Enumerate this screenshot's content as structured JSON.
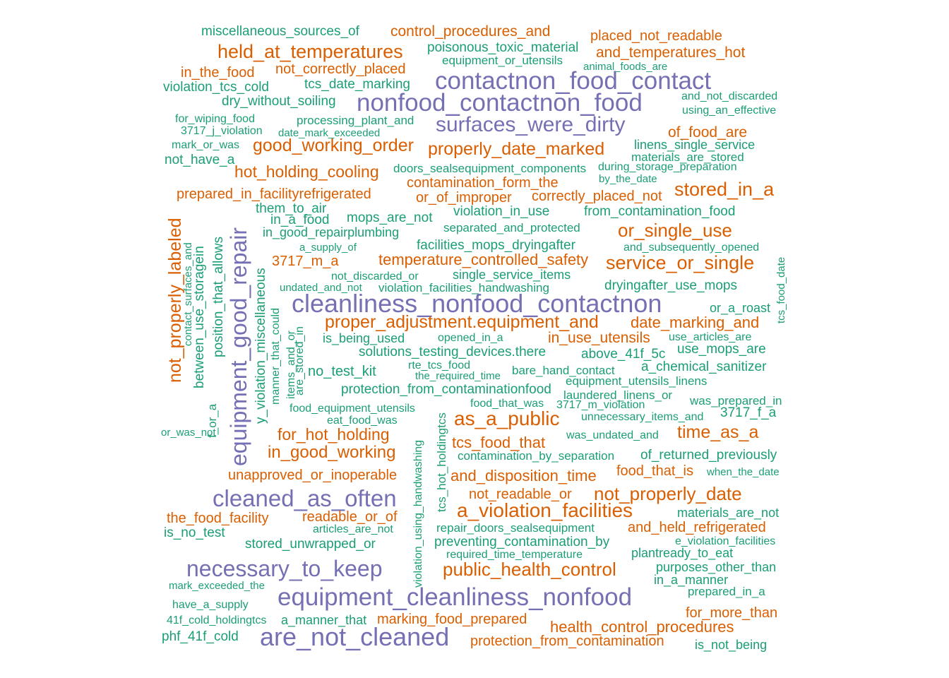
{
  "palette": {
    "purple": "#7570b3",
    "orange": "#d95f02",
    "teal": "#1b9e77"
  },
  "words": [
    {
      "text": "miscellaneous_sources_of",
      "color": "teal"
    },
    {
      "text": "control_procedures_and",
      "color": "orange"
    },
    {
      "text": "placed_not_readable",
      "color": "orange"
    },
    {
      "text": "held_at_temperatures",
      "color": "orange"
    },
    {
      "text": "poisonous_toxic_material",
      "color": "teal"
    },
    {
      "text": "and_temperatures_hot",
      "color": "orange"
    },
    {
      "text": "equipment_or_utensils",
      "color": "teal"
    },
    {
      "text": "in_the_food",
      "color": "orange"
    },
    {
      "text": "not_correctly_placed",
      "color": "orange"
    },
    {
      "text": "animal_foods_are",
      "color": "teal"
    },
    {
      "text": "contactnon_food_contact",
      "color": "purple"
    },
    {
      "text": "violation_tcs_cold",
      "color": "teal"
    },
    {
      "text": "tcs_date_marking",
      "color": "teal"
    },
    {
      "text": "dry_without_soiling",
      "color": "teal"
    },
    {
      "text": "nonfood_contactnon_food",
      "color": "purple"
    },
    {
      "text": "and_not_discarded",
      "color": "teal"
    },
    {
      "text": "using_an_effective",
      "color": "teal"
    },
    {
      "text": "for_wiping_food",
      "color": "teal"
    },
    {
      "text": "processing_plant_and",
      "color": "teal"
    },
    {
      "text": "surfaces_were_dirty",
      "color": "purple"
    },
    {
      "text": "3717_j_violation",
      "color": "teal"
    },
    {
      "text": "date_mark_exceeded",
      "color": "teal"
    },
    {
      "text": "of_food_are",
      "color": "orange"
    },
    {
      "text": "mark_or_was",
      "color": "teal"
    },
    {
      "text": "good_working_order",
      "color": "orange"
    },
    {
      "text": "properly_date_marked",
      "color": "orange"
    },
    {
      "text": "linens_single_service",
      "color": "teal"
    },
    {
      "text": "not_have_a",
      "color": "teal"
    },
    {
      "text": "materials_are_stored",
      "color": "teal"
    },
    {
      "text": "hot_holding_cooling",
      "color": "orange"
    },
    {
      "text": "doors_sealsequipment_components",
      "color": "teal"
    },
    {
      "text": "during_storage_preparation",
      "color": "teal"
    },
    {
      "text": "by_the_date",
      "color": "teal"
    },
    {
      "text": "contamination_form_the",
      "color": "orange"
    },
    {
      "text": "stored_in_a",
      "color": "orange"
    },
    {
      "text": "prepared_in_facilityrefrigerated",
      "color": "orange"
    },
    {
      "text": "or_of_improper",
      "color": "orange"
    },
    {
      "text": "correctly_placed_not",
      "color": "orange"
    },
    {
      "text": "them_to_air",
      "color": "teal"
    },
    {
      "text": "violation_in_use",
      "color": "teal"
    },
    {
      "text": "from_contamination_food",
      "color": "teal"
    },
    {
      "text": "in_a_food",
      "color": "teal"
    },
    {
      "text": "mops_are_not",
      "color": "teal"
    },
    {
      "text": "separated_and_protected",
      "color": "teal"
    },
    {
      "text": "or_single_use",
      "color": "orange"
    },
    {
      "text": "in_good_repairplumbing",
      "color": "teal"
    },
    {
      "text": "a_supply_of",
      "color": "teal"
    },
    {
      "text": "facilities_mops_dryingafter",
      "color": "teal"
    },
    {
      "text": "and_subsequently_opened",
      "color": "teal"
    },
    {
      "text": "3717_m_a",
      "color": "orange"
    },
    {
      "text": "temperature_controlled_safety",
      "color": "orange"
    },
    {
      "text": "service_or_single",
      "color": "orange"
    },
    {
      "text": "not_discarded_or",
      "color": "teal"
    },
    {
      "text": "single_service_items",
      "color": "teal"
    },
    {
      "text": "undated_and_not",
      "color": "teal"
    },
    {
      "text": "violation_facilities_handwashing",
      "color": "teal"
    },
    {
      "text": "dryingafter_use_mops",
      "color": "teal"
    },
    {
      "text": "cleanliness_nonfood_contactnon",
      "color": "purple"
    },
    {
      "text": "or_a_roast",
      "color": "teal"
    },
    {
      "text": "proper_adjustment.equipment_and",
      "color": "orange"
    },
    {
      "text": "date_marking_and",
      "color": "orange"
    },
    {
      "text": "is_being_used",
      "color": "teal"
    },
    {
      "text": "opened_in_a",
      "color": "teal"
    },
    {
      "text": "in_use_utensils",
      "color": "orange"
    },
    {
      "text": "use_articles_are",
      "color": "teal"
    },
    {
      "text": "solutions_testing_devices.there",
      "color": "teal"
    },
    {
      "text": "above_41f_5c",
      "color": "teal"
    },
    {
      "text": "use_mops_are",
      "color": "teal"
    },
    {
      "text": "rte_tcs_food",
      "color": "teal"
    },
    {
      "text": "a_chemical_sanitizer",
      "color": "teal"
    },
    {
      "text": "no_test_kit",
      "color": "teal"
    },
    {
      "text": "bare_hand_contact",
      "color": "teal"
    },
    {
      "text": "the_required_time",
      "color": "teal"
    },
    {
      "text": "equipment_utensils_linens",
      "color": "teal"
    },
    {
      "text": "protection_from_contaminationfood",
      "color": "teal"
    },
    {
      "text": "laundered_linens_or",
      "color": "teal"
    },
    {
      "text": "food_that_was",
      "color": "teal"
    },
    {
      "text": "3717_m_violation",
      "color": "teal"
    },
    {
      "text": "was_prepared_in",
      "color": "teal"
    },
    {
      "text": "food_equipment_utensils",
      "color": "teal"
    },
    {
      "text": "3717_f_a",
      "color": "teal"
    },
    {
      "text": "as_a_public",
      "color": "orange"
    },
    {
      "text": "unnecessary_items_and",
      "color": "teal"
    },
    {
      "text": "eat_food_was",
      "color": "teal"
    },
    {
      "text": "or_was_not",
      "color": "teal"
    },
    {
      "text": "for_hot_holding",
      "color": "orange"
    },
    {
      "text": "time_as_a",
      "color": "orange"
    },
    {
      "text": "was_undated_and",
      "color": "teal"
    },
    {
      "text": "in_good_working",
      "color": "orange"
    },
    {
      "text": "tcs_food_that",
      "color": "orange"
    },
    {
      "text": "contamination_by_separation",
      "color": "teal"
    },
    {
      "text": "of_returned_previously",
      "color": "teal"
    },
    {
      "text": "unapproved_or_inoperable",
      "color": "orange"
    },
    {
      "text": "and_disposition_time",
      "color": "orange"
    },
    {
      "text": "food_that_is",
      "color": "orange"
    },
    {
      "text": "when_the_date",
      "color": "teal"
    },
    {
      "text": "cleaned_as_often",
      "color": "purple"
    },
    {
      "text": "not_readable_or",
      "color": "orange"
    },
    {
      "text": "not_properly_date",
      "color": "orange"
    },
    {
      "text": "a_violation_facilities",
      "color": "orange"
    },
    {
      "text": "the_food_facility",
      "color": "orange"
    },
    {
      "text": "readable_or_of",
      "color": "orange"
    },
    {
      "text": "materials_are_not",
      "color": "teal"
    },
    {
      "text": "is_no_test",
      "color": "teal"
    },
    {
      "text": "articles_are_not",
      "color": "teal"
    },
    {
      "text": "repair_doors_sealsequipment",
      "color": "teal"
    },
    {
      "text": "and_held_refrigerated",
      "color": "orange"
    },
    {
      "text": "stored_unwrapped_or",
      "color": "teal"
    },
    {
      "text": "preventing_contamination_by",
      "color": "teal"
    },
    {
      "text": "e_violation_facilities",
      "color": "teal"
    },
    {
      "text": "required_time_temperature",
      "color": "teal"
    },
    {
      "text": "plantready_to_eat",
      "color": "teal"
    },
    {
      "text": "necessary_to_keep",
      "color": "purple"
    },
    {
      "text": "public_health_control",
      "color": "orange"
    },
    {
      "text": "purposes_other_than",
      "color": "teal"
    },
    {
      "text": "in_a_manner",
      "color": "teal"
    },
    {
      "text": "mark_exceeded_the",
      "color": "teal"
    },
    {
      "text": "prepared_in_a",
      "color": "teal"
    },
    {
      "text": "equipment_cleanliness_nonfood",
      "color": "purple"
    },
    {
      "text": "have_a_supply",
      "color": "teal"
    },
    {
      "text": "for_more_than",
      "color": "orange"
    },
    {
      "text": "41f_cold_holdingtcs",
      "color": "teal"
    },
    {
      "text": "a_manner_that",
      "color": "teal"
    },
    {
      "text": "marking_food_prepared",
      "color": "orange"
    },
    {
      "text": "health_control_procedures",
      "color": "orange"
    },
    {
      "text": "phf_41f_cold",
      "color": "teal"
    },
    {
      "text": "are_not_cleaned",
      "color": "purple"
    },
    {
      "text": "protection_from_contamination",
      "color": "orange"
    },
    {
      "text": "is_not_being",
      "color": "teal"
    },
    {
      "text": "not_properly_labeled",
      "color": "orange"
    },
    {
      "text": "contact_surfaces_and",
      "color": "teal"
    },
    {
      "text": "between_use_storagein",
      "color": "teal"
    },
    {
      "text": "f_or_a",
      "color": "teal"
    },
    {
      "text": "position_that_allows",
      "color": "teal"
    },
    {
      "text": "equipment_good_repair",
      "color": "purple"
    },
    {
      "text": "y_violation_miscellaneous",
      "color": "teal"
    },
    {
      "text": "manner_that_could",
      "color": "teal"
    },
    {
      "text": "items_and_or",
      "color": "teal"
    },
    {
      "text": "are_stored_in",
      "color": "teal"
    },
    {
      "text": "violation_using_handwashing",
      "color": "teal"
    },
    {
      "text": "tcs_hot_holdingtcs",
      "color": "teal"
    },
    {
      "text": "tcs_food_date",
      "color": "teal"
    }
  ]
}
